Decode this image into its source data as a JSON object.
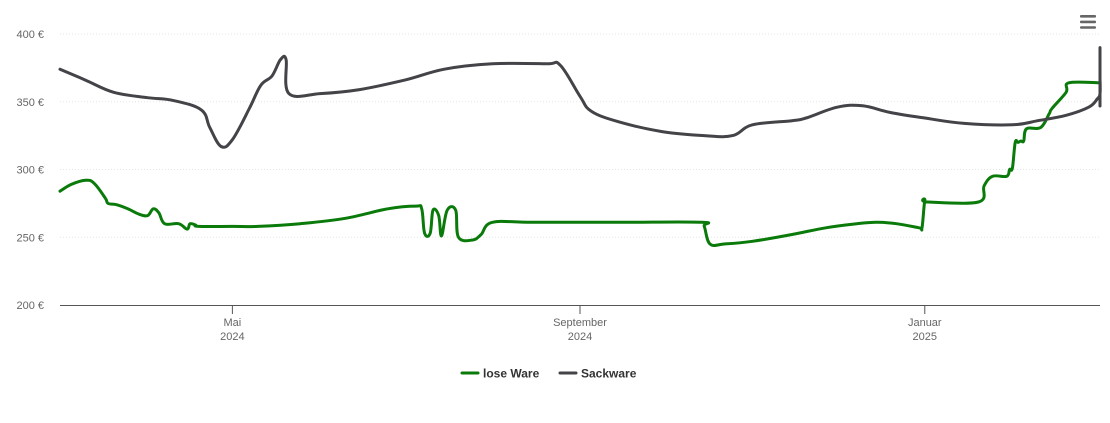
{
  "chart_data": {
    "type": "line",
    "title": "",
    "xlabel": "",
    "ylabel": "",
    "ylim": [
      200,
      400
    ],
    "y_ticks": [
      200,
      250,
      300,
      350,
      400
    ],
    "y_tick_labels": [
      "200 €",
      "250 €",
      "300 €",
      "350 €",
      "400 €"
    ],
    "xlim": [
      "2024-03-01",
      "2025-03-04"
    ],
    "x_ticks": [
      {
        "date": "2024-05-01",
        "month": "Mai",
        "year": "2024"
      },
      {
        "date": "2024-09-01",
        "month": "September",
        "year": "2024"
      },
      {
        "date": "2025-01-01",
        "month": "Januar",
        "year": "2025"
      }
    ],
    "grid": "horizontal dotted",
    "legend_position": "bottom-center",
    "series": [
      {
        "name": "lose Ware",
        "color": "#0a7a0a",
        "points": [
          [
            "2024-03-01",
            284
          ],
          [
            "2024-03-05",
            289
          ],
          [
            "2024-03-10",
            292
          ],
          [
            "2024-03-13",
            290
          ],
          [
            "2024-03-17",
            279
          ],
          [
            "2024-03-18",
            275
          ],
          [
            "2024-03-21",
            274
          ],
          [
            "2024-03-25",
            271
          ],
          [
            "2024-03-29",
            267
          ],
          [
            "2024-04-01",
            266
          ],
          [
            "2024-04-03",
            271
          ],
          [
            "2024-04-05",
            268
          ],
          [
            "2024-04-07",
            260
          ],
          [
            "2024-04-12",
            260
          ],
          [
            "2024-04-15",
            256
          ],
          [
            "2024-04-16",
            260
          ],
          [
            "2024-04-18",
            259
          ],
          [
            "2024-04-19",
            258
          ],
          [
            "2024-05-01",
            258
          ],
          [
            "2024-05-10",
            258
          ],
          [
            "2024-05-25",
            260
          ],
          [
            "2024-06-10",
            264
          ],
          [
            "2024-06-25",
            271
          ],
          [
            "2024-07-05",
            273
          ],
          [
            "2024-07-07",
            271
          ],
          [
            "2024-07-08",
            253
          ],
          [
            "2024-07-10",
            253
          ],
          [
            "2024-07-11",
            270
          ],
          [
            "2024-07-13",
            266
          ],
          [
            "2024-07-14",
            251
          ],
          [
            "2024-07-16",
            270
          ],
          [
            "2024-07-19",
            270
          ],
          [
            "2024-07-20",
            250
          ],
          [
            "2024-07-25",
            248
          ],
          [
            "2024-07-28",
            252
          ],
          [
            "2024-08-01",
            261
          ],
          [
            "2024-08-15",
            261
          ],
          [
            "2024-09-15",
            261
          ],
          [
            "2024-10-14",
            261
          ],
          [
            "2024-10-15",
            258
          ],
          [
            "2024-10-17",
            245
          ],
          [
            "2024-10-22",
            245
          ],
          [
            "2024-11-01",
            247
          ],
          [
            "2024-11-15",
            252
          ],
          [
            "2024-11-27",
            257
          ],
          [
            "2024-12-08",
            260
          ],
          [
            "2024-12-15",
            261
          ],
          [
            "2024-12-22",
            260
          ],
          [
            "2024-12-30",
            257
          ],
          [
            "2024-12-31",
            257
          ],
          [
            "2025-01-01",
            277
          ],
          [
            "2025-01-02",
            276
          ],
          [
            "2025-01-20",
            276
          ],
          [
            "2025-01-22",
            288
          ],
          [
            "2025-01-25",
            295
          ],
          [
            "2025-01-30",
            295
          ],
          [
            "2025-01-31",
            300
          ],
          [
            "2025-02-01",
            301
          ],
          [
            "2025-02-02",
            320
          ],
          [
            "2025-02-03",
            320
          ],
          [
            "2025-02-04",
            321
          ],
          [
            "2025-02-05",
            321
          ],
          [
            "2025-02-06",
            330
          ],
          [
            "2025-02-11",
            331
          ],
          [
            "2025-02-14",
            341
          ],
          [
            "2025-02-15",
            345
          ],
          [
            "2025-02-20",
            357
          ],
          [
            "2025-02-21",
            364
          ],
          [
            "2025-03-04",
            364
          ]
        ]
      },
      {
        "name": "Sackware",
        "color": "#434348",
        "points": [
          [
            "2024-03-01",
            374
          ],
          [
            "2024-03-10",
            366
          ],
          [
            "2024-03-20",
            357
          ],
          [
            "2024-04-01",
            353
          ],
          [
            "2024-04-10",
            351
          ],
          [
            "2024-04-20",
            344
          ],
          [
            "2024-04-23",
            331
          ],
          [
            "2024-04-27",
            317
          ],
          [
            "2024-05-01",
            322
          ],
          [
            "2024-05-07",
            345
          ],
          [
            "2024-05-11",
            362
          ],
          [
            "2024-05-15",
            369
          ],
          [
            "2024-05-18",
            381
          ],
          [
            "2024-05-20",
            381
          ],
          [
            "2024-05-21",
            356
          ],
          [
            "2024-06-01",
            356
          ],
          [
            "2024-06-15",
            359
          ],
          [
            "2024-07-01",
            366
          ],
          [
            "2024-07-15",
            374
          ],
          [
            "2024-08-01",
            378
          ],
          [
            "2024-08-20",
            378
          ],
          [
            "2024-08-25",
            377
          ],
          [
            "2024-09-01",
            354
          ],
          [
            "2024-09-05",
            343
          ],
          [
            "2024-09-15",
            335
          ],
          [
            "2024-09-30",
            328
          ],
          [
            "2024-10-15",
            325
          ],
          [
            "2024-10-25",
            325
          ],
          [
            "2024-11-01",
            333
          ],
          [
            "2024-11-15",
            336
          ],
          [
            "2024-11-20",
            338
          ],
          [
            "2024-12-01",
            346
          ],
          [
            "2024-12-10",
            347
          ],
          [
            "2024-12-20",
            342
          ],
          [
            "2025-01-01",
            338
          ],
          [
            "2025-01-15",
            334
          ],
          [
            "2025-02-01",
            333
          ],
          [
            "2025-02-10",
            336
          ],
          [
            "2025-02-20",
            340
          ],
          [
            "2025-02-28",
            346
          ],
          [
            "2025-03-03",
            352
          ],
          [
            "2025-03-05",
            356
          ],
          [
            "2025-03-06",
            367
          ],
          [
            "2025-03-07",
            360
          ],
          [
            "2025-03-08",
            347
          ],
          [
            "2025-03-10",
            367
          ],
          [
            "2025-03-12",
            390
          ]
        ]
      }
    ]
  }
}
